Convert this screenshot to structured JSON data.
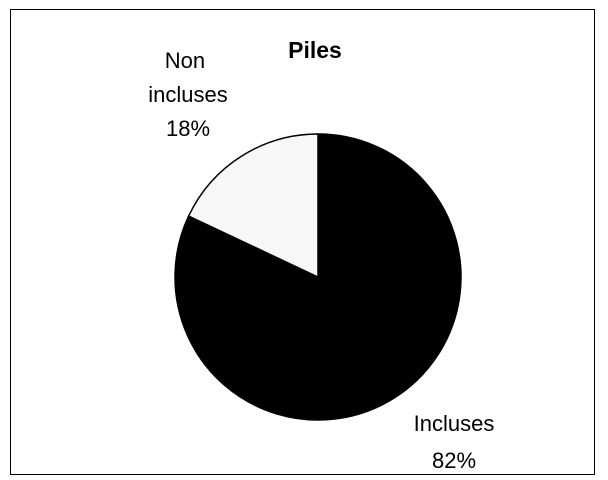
{
  "chart_data": {
    "type": "pie",
    "title": "Piles",
    "slices": [
      {
        "label_lines": [
          "Incluses"
        ],
        "percent_label": "82%",
        "value": 82,
        "color": "#000000"
      },
      {
        "label_lines": [
          "Non",
          "incluses"
        ],
        "percent_label": "18%",
        "value": 18,
        "color": "#f7f7f7"
      }
    ],
    "legend": "none",
    "start": "12 o'clock, clockwise"
  }
}
